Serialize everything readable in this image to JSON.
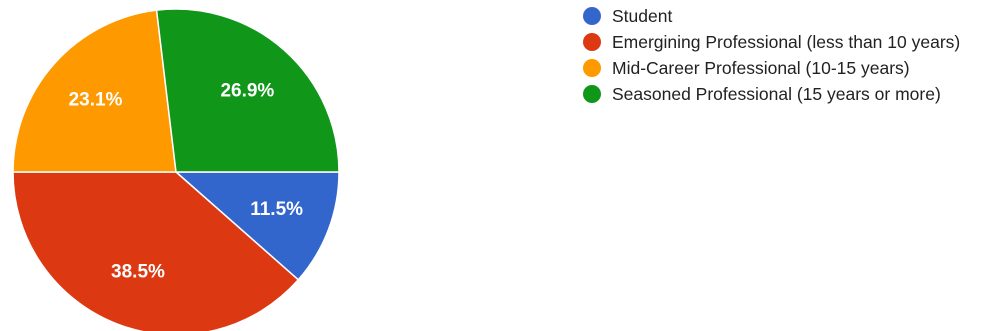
{
  "chart_data": {
    "type": "pie",
    "title": "",
    "slices": [
      {
        "label": "Student",
        "value": 11.5,
        "value_label": "11.5%",
        "color": "#3366cc"
      },
      {
        "label": "Emergining Professional (less than 10 years)",
        "value": 38.5,
        "value_label": "38.5%",
        "color": "#dc3912"
      },
      {
        "label": "Mid-Career Professional (10-15 years)",
        "value": 23.1,
        "value_label": "23.1%",
        "color": "#ff9900"
      },
      {
        "label": "Seasoned Professional (15 years or more)",
        "value": 26.9,
        "value_label": "26.9%",
        "color": "#109618"
      }
    ],
    "start_angle_deg": 90,
    "direction": "clockwise",
    "legend_position": "right"
  }
}
